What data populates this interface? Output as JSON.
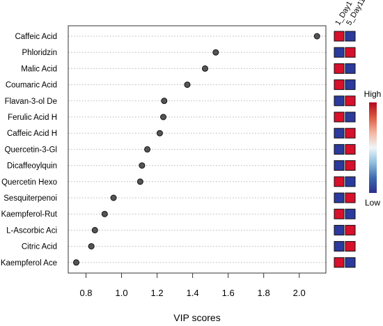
{
  "chart_data": {
    "type": "scatter",
    "title": "",
    "xlabel": "VIP scores",
    "ylabel": "",
    "xlim": [
      0.7,
      2.15
    ],
    "x_ticks": [
      "0.8",
      "1.0",
      "1.2",
      "1.4",
      "1.6",
      "1.8",
      "2.0"
    ],
    "grid": "horizontal dotted",
    "categories": [
      "Caffeic Acid",
      "Phloridzin",
      "Malic Acid",
      "Coumaric Acid",
      "Flavan-3-ol De",
      "Ferulic Acid H",
      "Caffeic Acid H",
      "Quercetin-3-Gl",
      "Dicaffeoylquin",
      "Quercetin Hexo",
      "Sesquiterpenoi",
      "Kaempferol-Rut",
      "L-Ascorbic Aci",
      "Citric Acid",
      "Kaempferol Ace"
    ],
    "values": [
      2.1,
      1.53,
      1.47,
      1.37,
      1.24,
      1.235,
      1.215,
      1.145,
      1.115,
      1.105,
      0.955,
      0.905,
      0.85,
      0.83,
      0.745
    ],
    "heatmap": {
      "columns": [
        "1_Day1",
        "5_Day11"
      ],
      "rows": [
        [
          "high",
          "low"
        ],
        [
          "low",
          "high"
        ],
        [
          "high",
          "low"
        ],
        [
          "high",
          "low"
        ],
        [
          "low",
          "high"
        ],
        [
          "high",
          "low"
        ],
        [
          "low",
          "high"
        ],
        [
          "low",
          "high"
        ],
        [
          "low",
          "high"
        ],
        [
          "high",
          "low"
        ],
        [
          "low",
          "high"
        ],
        [
          "high",
          "low"
        ],
        [
          "low",
          "high"
        ],
        [
          "low",
          "high"
        ],
        [
          "high",
          "low"
        ]
      ],
      "colors": {
        "high": "#d7102b",
        "low": "#2b3a9c"
      }
    },
    "legend": {
      "high_label": "High",
      "low_label": "Low",
      "gradient": [
        "#2b2f8f",
        "#3f6bb0",
        "#8fc0dc",
        "#eef6fa",
        "#f4b6a0",
        "#dd5a40",
        "#b1081f"
      ]
    }
  }
}
